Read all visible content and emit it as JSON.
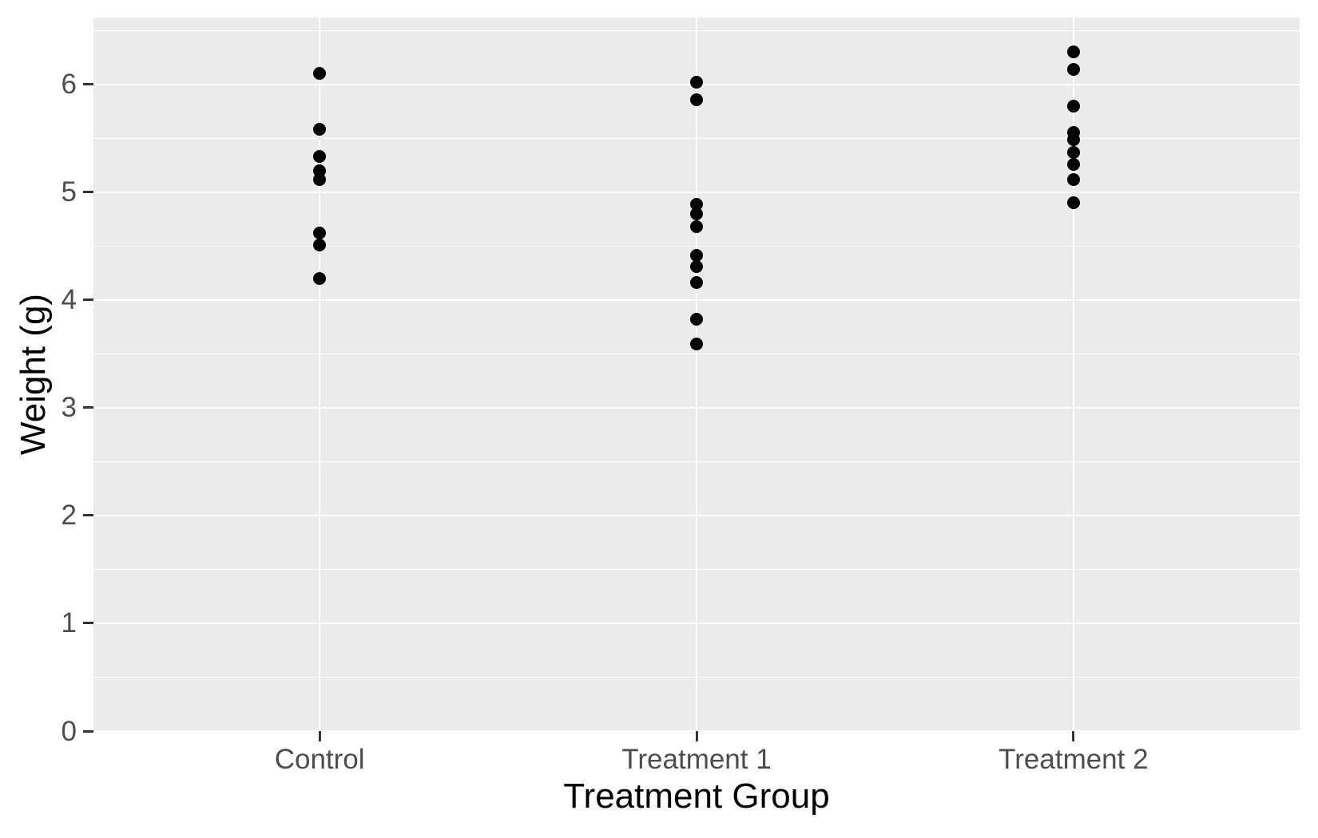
{
  "chart_data": {
    "type": "scatter",
    "title": "",
    "xlabel": "Treatment Group",
    "ylabel": "Weight (g)",
    "categories": [
      "Control",
      "Treatment 1",
      "Treatment 2"
    ],
    "series": [
      {
        "name": "Control",
        "values": [
          6.1,
          5.58,
          5.33,
          5.2,
          5.12,
          4.62,
          4.51,
          4.2
        ]
      },
      {
        "name": "Treatment 1",
        "values": [
          6.02,
          5.86,
          4.89,
          4.8,
          4.68,
          4.41,
          4.31,
          4.16,
          3.82,
          3.59
        ]
      },
      {
        "name": "Treatment 2",
        "values": [
          6.3,
          6.14,
          5.8,
          5.55,
          5.49,
          5.37,
          5.26,
          5.12,
          4.9
        ]
      }
    ],
    "yticks": [
      0,
      1,
      2,
      3,
      4,
      5,
      6
    ],
    "minor_yticks": [
      0.5,
      1.5,
      2.5,
      3.5,
      4.5,
      5.5,
      6.5
    ],
    "ylim": [
      0,
      6.62
    ],
    "grid": true,
    "legend": false,
    "colors": {
      "point": "#000000",
      "panel_background": "#EBEBEB",
      "gridline": "#FFFFFF",
      "tick_mark": "#333333",
      "tick_label": "#4D4D4D",
      "axis_title": "#000000"
    }
  }
}
